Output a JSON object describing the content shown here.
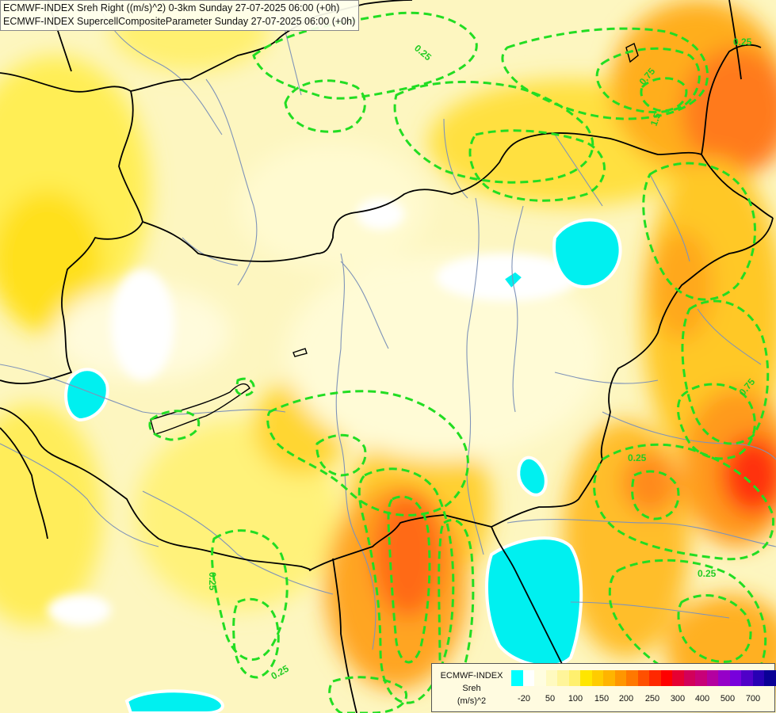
{
  "header": {
    "line1": "ECMWF-INDEX Sreh Right ((m/s)^2) 0-3km Sunday 27-07-2025 06:00 (+0h)",
    "line2": "ECMWF-INDEX SupercellCompositeParameter Sunday 27-07-2025 06:00 (+0h)"
  },
  "contour_labels": [
    "0.25",
    "0.75",
    "1.5",
    "0.25",
    "0.75",
    "0.25",
    "0.25",
    "0.25",
    "0.25"
  ],
  "legend": {
    "title_line1": "ECMWF-INDEX",
    "title_line2": "Sreh",
    "title_line3": "(m/s)^2",
    "colors": [
      "#00ffff",
      "#ffffff",
      "#fffde0",
      "#fffac0",
      "#fff59a",
      "#fff06e",
      "#ffe600",
      "#ffcc00",
      "#ffb400",
      "#ff9600",
      "#ff7800",
      "#ff5000",
      "#ff2800",
      "#ff0000",
      "#e60032",
      "#d2005a",
      "#c80078",
      "#b400a0",
      "#9600c8",
      "#7800dc",
      "#5000c8",
      "#2800b4",
      "#0a0096"
    ],
    "tick_labels": [
      "-20",
      "50",
      "100",
      "150",
      "200",
      "250",
      "300",
      "400",
      "500",
      "700"
    ]
  },
  "colors": {
    "spc_contour": "#22dd22",
    "border": "#000000",
    "river": "#7f93b8",
    "low": "#00f0f0"
  }
}
